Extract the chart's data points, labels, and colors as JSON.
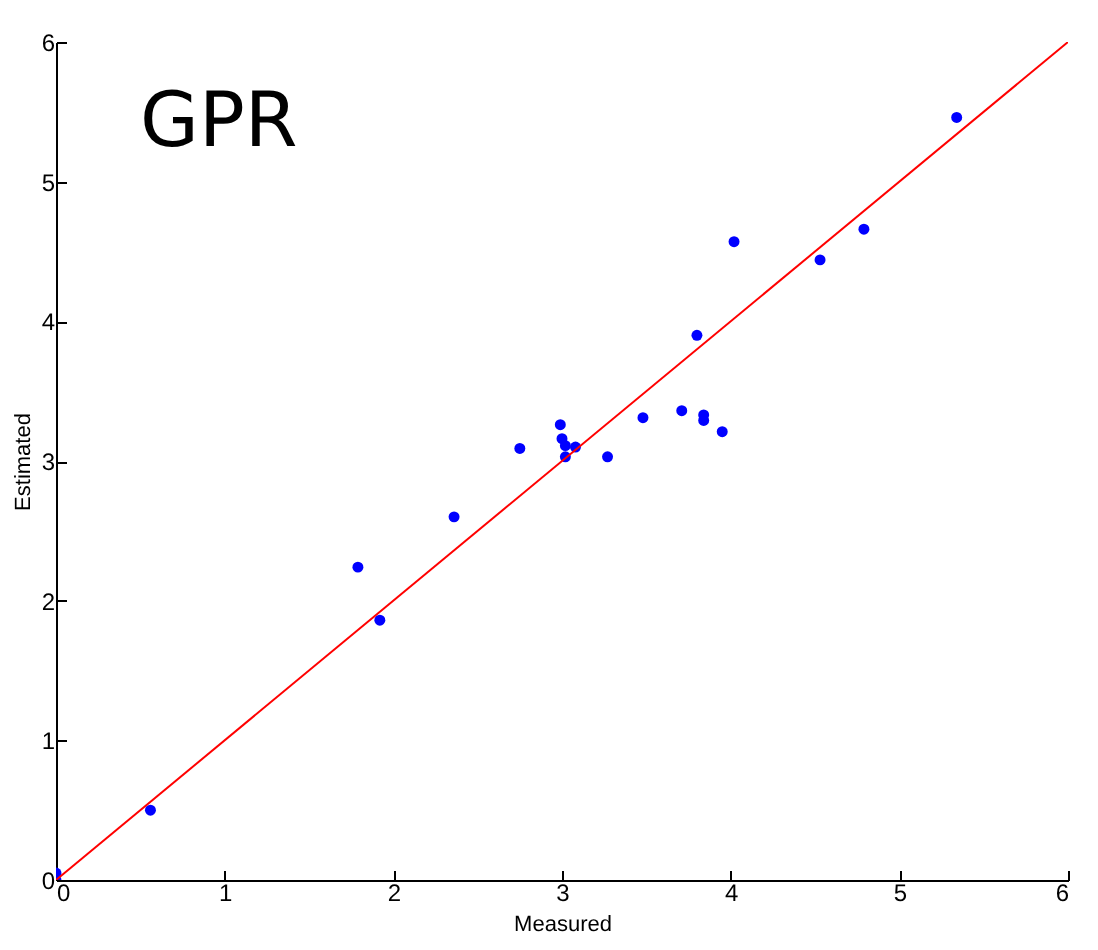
{
  "chart_data": {
    "type": "scatter",
    "title": "GPR",
    "xlabel": "Measured",
    "ylabel": "Estimated",
    "xlim": [
      0,
      6
    ],
    "ylim": [
      0,
      6
    ],
    "xticks": [
      0,
      1,
      2,
      3,
      4,
      5,
      6
    ],
    "yticks": [
      0,
      1,
      2,
      3,
      4,
      5,
      6
    ],
    "grid": false,
    "series": [
      {
        "type": "scatter",
        "marker": "circle",
        "color": "#0000ff",
        "x": [
          0,
          0,
          0.56,
          1.79,
          1.92,
          2.36,
          2.75,
          2.99,
          3.0,
          3.02,
          3.02,
          3.08,
          3.27,
          3.48,
          3.71,
          3.8,
          3.84,
          3.84,
          3.95,
          4.02,
          4.53,
          4.79,
          5.34
        ],
        "values": [
          0,
          0.05,
          0.5,
          2.24,
          1.86,
          2.6,
          3.09,
          3.26,
          3.16,
          3.11,
          3.03,
          3.1,
          3.03,
          3.31,
          3.36,
          3.9,
          3.33,
          3.29,
          3.21,
          4.57,
          4.44,
          4.66,
          5.46
        ]
      },
      {
        "type": "line",
        "color": "#ff0000",
        "x": [
          0,
          6
        ],
        "values": [
          0,
          6
        ]
      }
    ]
  }
}
